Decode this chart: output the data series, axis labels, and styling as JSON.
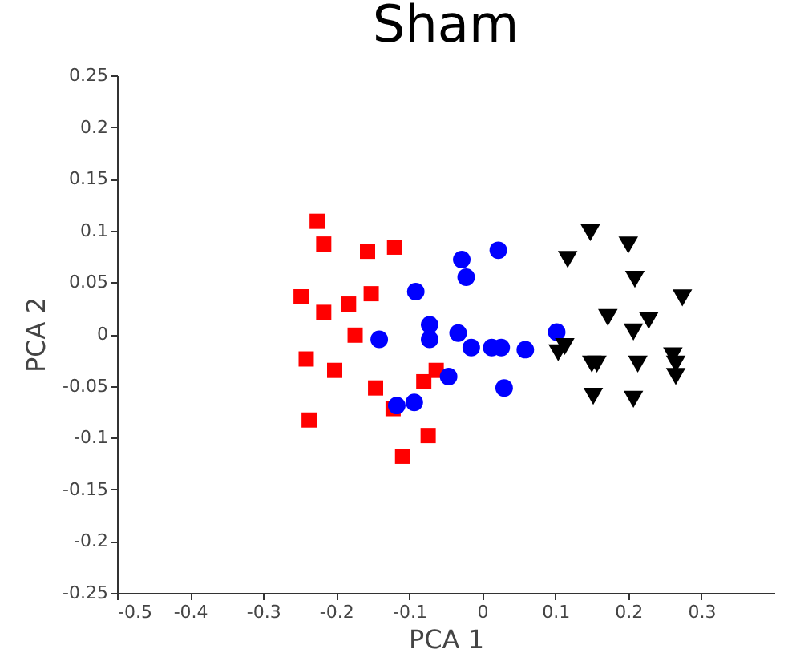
{
  "chart_data": {
    "type": "scatter",
    "title": "Sham",
    "xlabel": "PCA 1",
    "ylabel": "PCA 2",
    "xlim": [
      -0.5,
      0.4
    ],
    "ylim": [
      -0.25,
      0.25
    ],
    "xticks": [
      -0.5,
      -0.4,
      -0.3,
      -0.2,
      -0.1,
      0,
      0.1,
      0.2,
      0.3
    ],
    "yticks": [
      -0.25,
      -0.2,
      -0.15,
      -0.1,
      -0.05,
      0,
      0.05,
      0.1,
      0.15,
      0.2,
      0.25
    ],
    "grid": false,
    "series": [
      {
        "color": "#ff0000",
        "marker": "square",
        "x": [
          -0.226,
          -0.217,
          -0.157,
          -0.12,
          -0.248,
          -0.217,
          -0.183,
          -0.152,
          -0.174,
          -0.241,
          -0.202,
          -0.146,
          -0.122,
          -0.237,
          -0.08,
          -0.063,
          -0.074,
          -0.109
        ],
        "values": [
          0.109,
          0.087,
          0.08,
          0.084,
          0.036,
          0.021,
          0.029,
          0.039,
          -0.001,
          -0.024,
          -0.035,
          -0.052,
          -0.072,
          -0.083,
          -0.046,
          -0.035,
          -0.098,
          -0.118
        ]
      },
      {
        "color": "#0000ff",
        "marker": "circle",
        "x": [
          -0.028,
          0.022,
          -0.022,
          -0.091,
          -0.141,
          -0.072,
          -0.072,
          -0.033,
          -0.015,
          0.013,
          0.026,
          0.059,
          0.102,
          -0.046,
          0.03,
          -0.117,
          -0.093
        ],
        "values": [
          0.072,
          0.081,
          0.055,
          0.041,
          -0.005,
          0.009,
          -0.005,
          0.001,
          -0.013,
          -0.013,
          -0.013,
          -0.015,
          0.002,
          -0.041,
          -0.052,
          -0.069,
          -0.066
        ]
      },
      {
        "color": "#000000",
        "marker": "triangle-down",
        "x": [
          0.148,
          0.2,
          0.117,
          0.209,
          0.274,
          0.172,
          0.228,
          0.207,
          0.113,
          0.104,
          0.15,
          0.157,
          0.213,
          0.261,
          0.265,
          0.265,
          0.152,
          0.207
        ],
        "values": [
          0.098,
          0.086,
          0.072,
          0.053,
          0.035,
          0.016,
          0.013,
          0.002,
          -0.012,
          -0.018,
          -0.029,
          -0.029,
          -0.029,
          -0.021,
          -0.029,
          -0.041,
          -0.06,
          -0.063
        ]
      }
    ]
  }
}
